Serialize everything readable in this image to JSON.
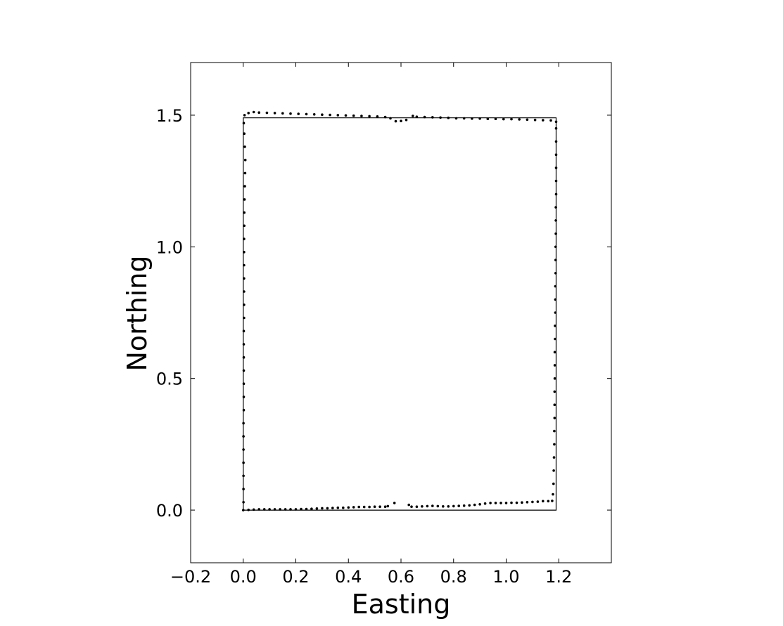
{
  "chart_data": {
    "type": "scatter",
    "title": "",
    "xlabel": "Easting",
    "ylabel": "Northing",
    "xlim": [
      -0.2,
      1.4
    ],
    "ylim": [
      -0.2,
      1.7
    ],
    "xticks": [
      -0.2,
      0.0,
      0.2,
      0.4,
      0.6,
      0.8,
      1.0,
      1.2
    ],
    "yticks": [
      0.0,
      0.5,
      1.0,
      1.5
    ],
    "xtick_labels": [
      "−0.2",
      "0.0",
      "0.2",
      "0.4",
      "0.6",
      "0.8",
      "1.0",
      "1.2"
    ],
    "ytick_labels": [
      "0.0",
      "0.5",
      "1.0",
      "1.5"
    ],
    "grid": false,
    "reference_path": {
      "x": [
        0.0,
        1.19,
        1.19,
        0.0,
        0.0
      ],
      "y": [
        0.0,
        0.0,
        1.49,
        1.49,
        0.0
      ]
    },
    "series": [
      {
        "marker_color": "#000000",
        "points": [
          [
            0.0,
            0.0
          ],
          [
            0.02,
            0.001
          ],
          [
            0.04,
            0.002
          ],
          [
            0.06,
            0.003
          ],
          [
            0.08,
            0.003
          ],
          [
            0.1,
            0.003
          ],
          [
            0.12,
            0.003
          ],
          [
            0.14,
            0.003
          ],
          [
            0.16,
            0.003
          ],
          [
            0.18,
            0.003
          ],
          [
            0.2,
            0.003
          ],
          [
            0.22,
            0.004
          ],
          [
            0.24,
            0.004
          ],
          [
            0.26,
            0.005
          ],
          [
            0.28,
            0.006
          ],
          [
            0.3,
            0.007
          ],
          [
            0.32,
            0.007
          ],
          [
            0.34,
            0.008
          ],
          [
            0.36,
            0.009
          ],
          [
            0.38,
            0.009
          ],
          [
            0.4,
            0.01
          ],
          [
            0.42,
            0.011
          ],
          [
            0.44,
            0.012
          ],
          [
            0.46,
            0.012
          ],
          [
            0.48,
            0.012
          ],
          [
            0.5,
            0.013
          ],
          [
            0.52,
            0.013
          ],
          [
            0.54,
            0.013
          ],
          [
            0.55,
            0.015
          ],
          [
            0.575,
            0.027
          ],
          [
            0.63,
            0.02
          ],
          [
            0.64,
            0.013
          ],
          [
            0.66,
            0.013
          ],
          [
            0.68,
            0.014
          ],
          [
            0.7,
            0.015
          ],
          [
            0.72,
            0.016
          ],
          [
            0.74,
            0.015
          ],
          [
            0.76,
            0.014
          ],
          [
            0.78,
            0.014
          ],
          [
            0.8,
            0.015
          ],
          [
            0.82,
            0.016
          ],
          [
            0.84,
            0.017
          ],
          [
            0.86,
            0.018
          ],
          [
            0.88,
            0.02
          ],
          [
            0.9,
            0.022
          ],
          [
            0.92,
            0.025
          ],
          [
            0.94,
            0.027
          ],
          [
            0.96,
            0.027
          ],
          [
            0.98,
            0.027
          ],
          [
            1.0,
            0.027
          ],
          [
            1.02,
            0.028
          ],
          [
            1.04,
            0.028
          ],
          [
            1.06,
            0.029
          ],
          [
            1.08,
            0.03
          ],
          [
            1.1,
            0.031
          ],
          [
            1.12,
            0.032
          ],
          [
            1.14,
            0.034
          ],
          [
            1.16,
            0.034
          ],
          [
            1.175,
            0.035
          ],
          [
            1.178,
            0.06
          ],
          [
            1.18,
            0.1
          ],
          [
            1.181,
            0.15
          ],
          [
            1.182,
            0.2
          ],
          [
            1.183,
            0.25
          ],
          [
            1.183,
            0.3
          ],
          [
            1.184,
            0.35
          ],
          [
            1.184,
            0.4
          ],
          [
            1.184,
            0.45
          ],
          [
            1.185,
            0.5
          ],
          [
            1.185,
            0.55
          ],
          [
            1.185,
            0.6
          ],
          [
            1.186,
            0.65
          ],
          [
            1.186,
            0.7
          ],
          [
            1.187,
            0.75
          ],
          [
            1.187,
            0.8
          ],
          [
            1.187,
            0.85
          ],
          [
            1.188,
            0.9
          ],
          [
            1.188,
            0.95
          ],
          [
            1.188,
            1.0
          ],
          [
            1.189,
            1.05
          ],
          [
            1.189,
            1.1
          ],
          [
            1.189,
            1.15
          ],
          [
            1.19,
            1.2
          ],
          [
            1.19,
            1.25
          ],
          [
            1.19,
            1.3
          ],
          [
            1.19,
            1.35
          ],
          [
            1.19,
            1.4
          ],
          [
            1.19,
            1.45
          ],
          [
            1.19,
            1.475
          ],
          [
            1.17,
            1.48
          ],
          [
            1.14,
            1.481
          ],
          [
            1.11,
            1.482
          ],
          [
            1.08,
            1.483
          ],
          [
            1.05,
            1.484
          ],
          [
            1.02,
            1.485
          ],
          [
            0.99,
            1.485
          ],
          [
            0.96,
            1.486
          ],
          [
            0.93,
            1.486
          ],
          [
            0.9,
            1.487
          ],
          [
            0.87,
            1.487
          ],
          [
            0.84,
            1.488
          ],
          [
            0.81,
            1.488
          ],
          [
            0.78,
            1.49
          ],
          [
            0.75,
            1.491
          ],
          [
            0.72,
            1.492
          ],
          [
            0.69,
            1.493
          ],
          [
            0.66,
            1.494
          ],
          [
            0.645,
            1.497
          ],
          [
            0.62,
            1.482
          ],
          [
            0.6,
            1.478
          ],
          [
            0.58,
            1.477
          ],
          [
            0.56,
            1.488
          ],
          [
            0.54,
            1.493
          ],
          [
            0.51,
            1.495
          ],
          [
            0.48,
            1.496
          ],
          [
            0.45,
            1.497
          ],
          [
            0.42,
            1.498
          ],
          [
            0.39,
            1.499
          ],
          [
            0.36,
            1.5
          ],
          [
            0.33,
            1.501
          ],
          [
            0.3,
            1.502
          ],
          [
            0.27,
            1.503
          ],
          [
            0.24,
            1.504
          ],
          [
            0.21,
            1.505
          ],
          [
            0.18,
            1.506
          ],
          [
            0.15,
            1.507
          ],
          [
            0.12,
            1.508
          ],
          [
            0.09,
            1.509
          ],
          [
            0.06,
            1.51
          ],
          [
            0.04,
            1.512
          ],
          [
            0.02,
            1.508
          ],
          [
            0.005,
            1.5
          ],
          [
            0.002,
            1.47
          ],
          [
            0.004,
            1.43
          ],
          [
            0.006,
            1.38
          ],
          [
            0.008,
            1.33
          ],
          [
            0.007,
            1.28
          ],
          [
            0.006,
            1.23
          ],
          [
            0.005,
            1.18
          ],
          [
            0.004,
            1.13
          ],
          [
            0.004,
            1.08
          ],
          [
            0.003,
            1.03
          ],
          [
            0.003,
            0.98
          ],
          [
            0.003,
            0.93
          ],
          [
            0.003,
            0.88
          ],
          [
            0.003,
            0.83
          ],
          [
            0.003,
            0.78
          ],
          [
            0.003,
            0.73
          ],
          [
            0.002,
            0.68
          ],
          [
            0.002,
            0.63
          ],
          [
            0.002,
            0.58
          ],
          [
            0.002,
            0.53
          ],
          [
            0.002,
            0.48
          ],
          [
            0.002,
            0.43
          ],
          [
            0.002,
            0.38
          ],
          [
            0.001,
            0.33
          ],
          [
            0.001,
            0.28
          ],
          [
            0.001,
            0.23
          ],
          [
            0.001,
            0.18
          ],
          [
            0.001,
            0.13
          ],
          [
            0.001,
            0.08
          ],
          [
            0.001,
            0.03
          ]
        ]
      }
    ]
  }
}
